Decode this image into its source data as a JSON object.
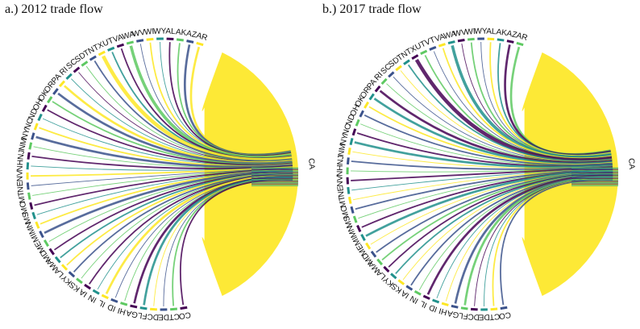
{
  "panels": [
    {
      "id": "panel-a",
      "title": "a.) 2012 trade flow",
      "hub": "CA",
      "states": [
        "AR",
        "AZ",
        "AK",
        "AL",
        "WY",
        "WI",
        "WV",
        "WA",
        "VA",
        "UT",
        "TX",
        "TN",
        "SD",
        "SC",
        "RI",
        "PA",
        "OR",
        "OK",
        "OH",
        "ND",
        "NC",
        "NY",
        "NM",
        "NJ",
        "NH",
        "NV",
        "NE",
        "MT",
        "MO",
        "MS",
        "MN",
        "MI",
        "ME",
        "MD",
        "MA",
        "LA",
        "KY",
        "KS",
        "IA",
        "IN",
        "IL",
        "ID",
        "HI",
        "GA",
        "FL",
        "DC",
        "DE",
        "CT",
        "CO"
      ],
      "flow_weights": [
        3,
        3,
        2,
        2,
        1,
        2,
        1,
        4,
        2,
        2,
        5,
        2,
        1,
        1,
        1,
        3,
        3,
        2,
        2,
        1,
        2,
        3,
        1,
        2,
        1,
        2,
        1,
        1,
        2,
        1,
        2,
        3,
        1,
        2,
        2,
        2,
        2,
        1,
        2,
        1,
        3,
        1,
        1,
        3,
        3,
        1,
        1,
        2,
        2
      ],
      "colors": [
        "#fde725",
        "#5ec962",
        "#21918c",
        "#3b528b",
        "#440154"
      ]
    },
    {
      "id": "panel-b",
      "title": "b.) 2017 trade flow",
      "hub": "CA",
      "states": [
        "AR",
        "AZ",
        "AK",
        "AL",
        "WY",
        "WI",
        "WV",
        "WA",
        "VA",
        "VT",
        "UT",
        "TX",
        "TN",
        "SD",
        "SC",
        "RI",
        "PA",
        "OR",
        "OK",
        "OH",
        "ND",
        "NC",
        "NY",
        "NM",
        "NJ",
        "NH",
        "NV",
        "NE",
        "MT",
        "MO",
        "MS",
        "MN",
        "MI",
        "ME",
        "MD",
        "MA",
        "LA",
        "KY",
        "KS",
        "IA",
        "IN",
        "IL",
        "ID",
        "HI",
        "GA",
        "FL",
        "DC",
        "DE",
        "CT",
        "CO"
      ],
      "flow_weights": [
        3,
        3,
        2,
        2,
        1,
        2,
        1,
        4,
        2,
        1,
        2,
        5,
        2,
        1,
        1,
        1,
        3,
        3,
        2,
        2,
        1,
        2,
        3,
        1,
        2,
        1,
        2,
        1,
        1,
        2,
        1,
        2,
        3,
        1,
        2,
        2,
        2,
        2,
        1,
        2,
        1,
        3,
        1,
        1,
        3,
        3,
        1,
        1,
        2,
        2
      ],
      "colors": [
        "#fde725",
        "#5ec962",
        "#21918c",
        "#3b528b",
        "#440154"
      ]
    }
  ]
}
